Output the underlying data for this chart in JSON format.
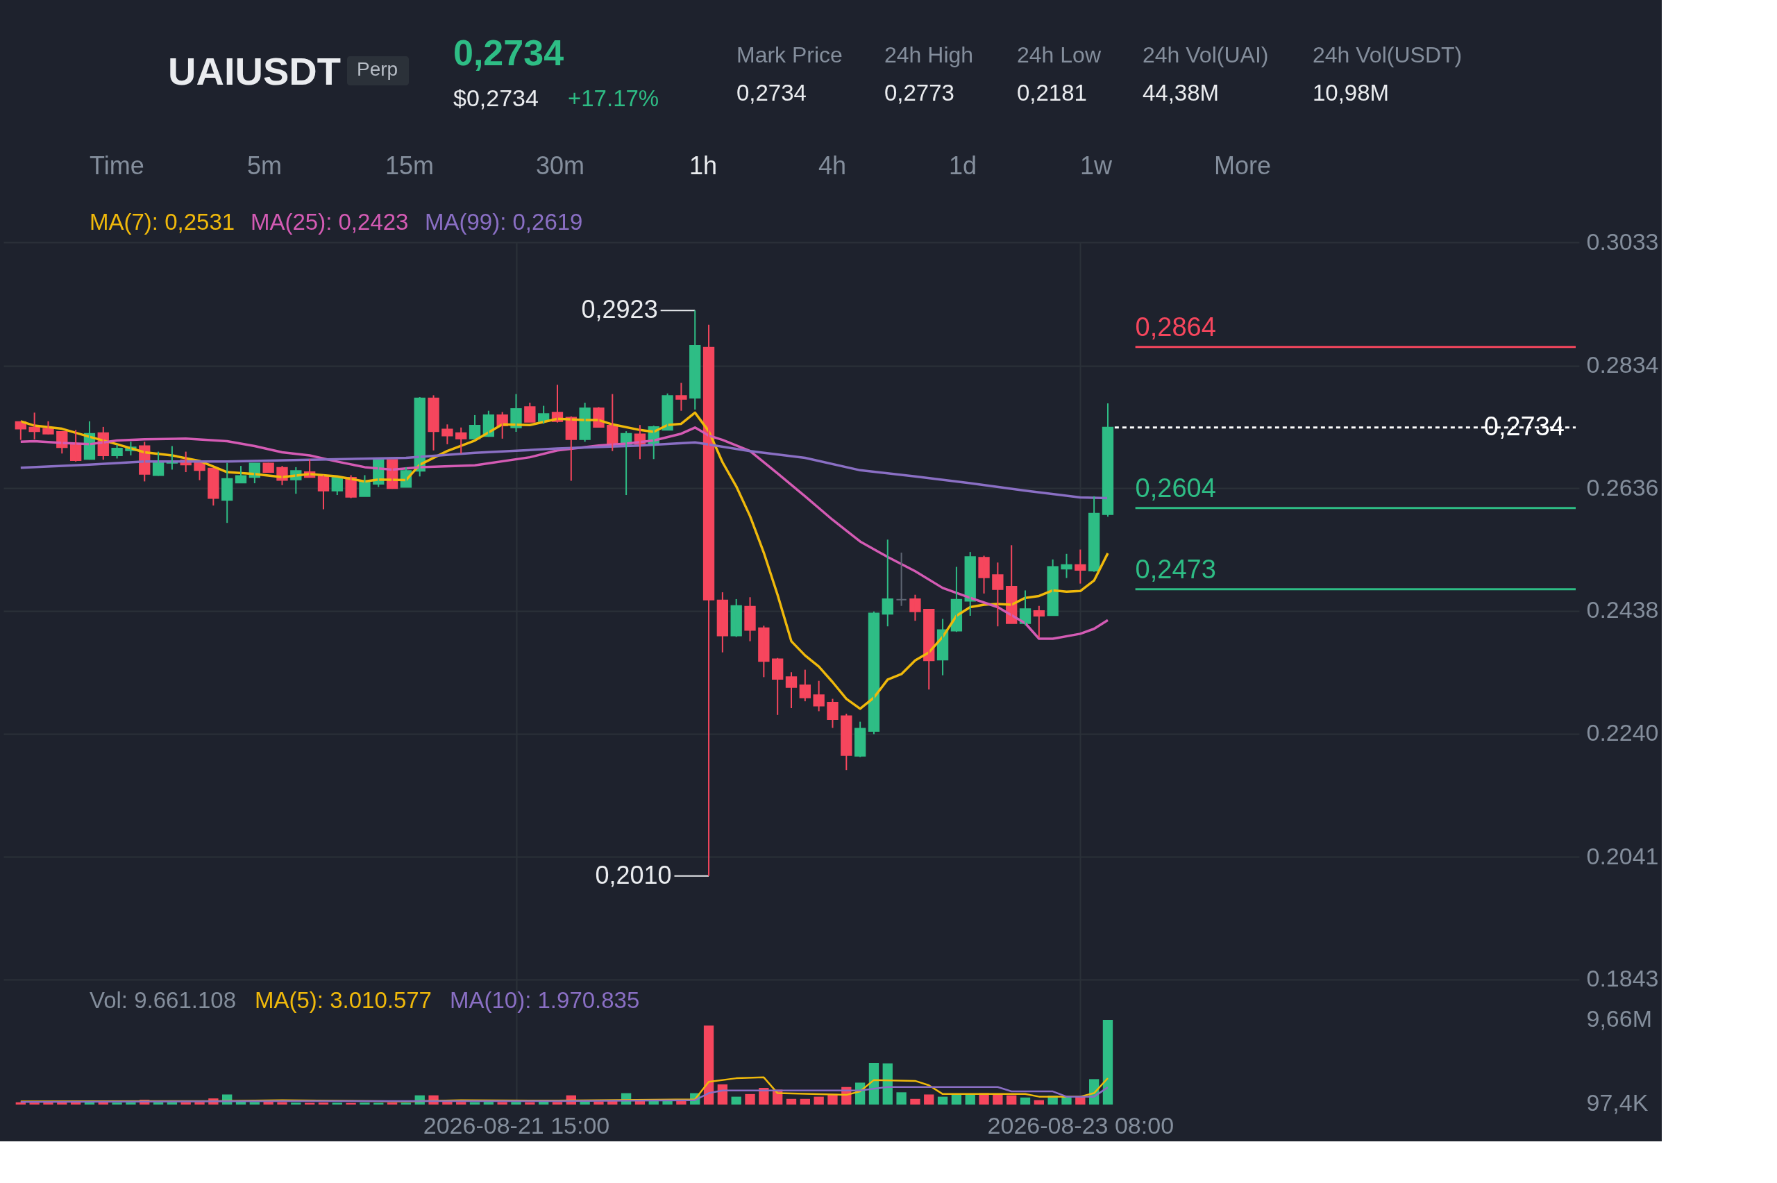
{
  "chart_data": {
    "type": "candlestick",
    "title": "UAIUSDT",
    "subtitle": "Perp",
    "annotations": [
      "0,2734",
      "$0,2734",
      "+17.17%",
      "Mark Price",
      "0,2734",
      "24h High",
      "0,2773",
      "24h Low",
      "0,2181",
      "24h Vol(UAI)",
      "44,38M",
      "24h Vol(USDT)",
      "10,98M",
      "Time",
      "5m",
      "15m",
      "30m",
      "1h",
      "4h",
      "1d",
      "1w",
      "More",
      "Vol: 9.661.108",
      "MA(5): 3.010.577",
      "MA(10): 1.970.835",
      {
        "text": "0,2923",
        "x": "2026-08-22T04:00",
        "y": 0.2923
      },
      {
        "text": "0,2010",
        "x": "2026-08-22T05:00",
        "y": 0.201
      }
    ],
    "x": [
      "2026-08-20T03:00",
      "2026-08-20T04:00",
      "2026-08-20T05:00",
      "2026-08-20T06:00",
      "2026-08-20T07:00",
      "2026-08-20T08:00",
      "2026-08-20T09:00",
      "2026-08-20T10:00",
      "2026-08-20T11:00",
      "2026-08-20T12:00",
      "2026-08-20T13:00",
      "2026-08-20T14:00",
      "2026-08-20T15:00",
      "2026-08-20T16:00",
      "2026-08-20T17:00",
      "2026-08-20T18:00",
      "2026-08-20T19:00",
      "2026-08-20T20:00",
      "2026-08-20T21:00",
      "2026-08-20T22:00",
      "2026-08-20T23:00",
      "2026-08-21T00:00",
      "2026-08-21T01:00",
      "2026-08-21T02:00",
      "2026-08-21T03:00",
      "2026-08-21T04:00",
      "2026-08-21T05:00",
      "2026-08-21T06:00",
      "2026-08-21T07:00",
      "2026-08-21T08:00",
      "2026-08-21T09:00",
      "2026-08-21T10:00",
      "2026-08-21T11:00",
      "2026-08-21T12:00",
      "2026-08-21T13:00",
      "2026-08-21T14:00",
      "2026-08-21T15:00",
      "2026-08-21T16:00",
      "2026-08-21T17:00",
      "2026-08-21T18:00",
      "2026-08-21T19:00",
      "2026-08-21T20:00",
      "2026-08-21T21:00",
      "2026-08-21T22:00",
      "2026-08-21T23:00",
      "2026-08-22T00:00",
      "2026-08-22T01:00",
      "2026-08-22T02:00",
      "2026-08-22T03:00",
      "2026-08-22T04:00",
      "2026-08-22T05:00",
      "2026-08-22T06:00",
      "2026-08-22T07:00",
      "2026-08-22T08:00",
      "2026-08-22T09:00",
      "2026-08-22T10:00",
      "2026-08-22T11:00",
      "2026-08-22T12:00",
      "2026-08-22T13:00",
      "2026-08-22T14:00",
      "2026-08-22T15:00",
      "2026-08-22T16:00",
      "2026-08-22T17:00",
      "2026-08-22T18:00",
      "2026-08-22T19:00",
      "2026-08-22T20:00",
      "2026-08-22T21:00",
      "2026-08-22T22:00",
      "2026-08-22T23:00",
      "2026-08-23T00:00",
      "2026-08-23T01:00",
      "2026-08-23T02:00",
      "2026-08-23T03:00",
      "2026-08-23T04:00",
      "2026-08-23T05:00",
      "2026-08-23T06:00",
      "2026-08-23T07:00",
      "2026-08-23T08:00",
      "2026-08-23T09:00",
      "2026-08-23T10:00"
    ],
    "ohlc": [
      [
        0.2743,
        0.2744,
        0.2714,
        0.2732
      ],
      [
        0.2734,
        0.2758,
        0.2715,
        0.2728
      ],
      [
        0.2732,
        0.2744,
        0.2723,
        0.2724
      ],
      [
        0.2727,
        0.2727,
        0.2692,
        0.2702
      ],
      [
        0.2706,
        0.273,
        0.2679,
        0.2681
      ],
      [
        0.2683,
        0.2744,
        0.2682,
        0.2724
      ],
      [
        0.2725,
        0.2735,
        0.2682,
        0.2689
      ],
      [
        0.2689,
        0.2706,
        0.2684,
        0.27
      ],
      [
        0.2697,
        0.2711,
        0.2689,
        0.2702
      ],
      [
        0.2704,
        0.2711,
        0.2647,
        0.2659
      ],
      [
        0.2657,
        0.2695,
        0.2656,
        0.2677
      ],
      [
        0.2677,
        0.2704,
        0.2666,
        0.268
      ],
      [
        0.2681,
        0.2695,
        0.2662,
        0.2674
      ],
      [
        0.2677,
        0.2677,
        0.2649,
        0.2665
      ],
      [
        0.2668,
        0.2668,
        0.2608,
        0.262
      ],
      [
        0.2617,
        0.2677,
        0.258,
        0.2651
      ],
      [
        0.2645,
        0.2672,
        0.2645,
        0.2656
      ],
      [
        0.2654,
        0.2676,
        0.2644,
        0.2676
      ],
      [
        0.2676,
        0.2677,
        0.2662,
        0.2662
      ],
      [
        0.2669,
        0.2672,
        0.2641,
        0.2649
      ],
      [
        0.265,
        0.267,
        0.2627,
        0.2664
      ],
      [
        0.2662,
        0.2683,
        0.2653,
        0.2654
      ],
      [
        0.2655,
        0.2657,
        0.2602,
        0.2632
      ],
      [
        0.2632,
        0.2653,
        0.2625,
        0.2653
      ],
      [
        0.2653,
        0.2657,
        0.262,
        0.2622
      ],
      [
        0.2623,
        0.2657,
        0.2623,
        0.2647
      ],
      [
        0.2643,
        0.2682,
        0.2638,
        0.2682
      ],
      [
        0.2682,
        0.2682,
        0.2635,
        0.2636
      ],
      [
        0.2638,
        0.267,
        0.2638,
        0.2664
      ],
      [
        0.2664,
        0.2783,
        0.2655,
        0.2781
      ],
      [
        0.2781,
        0.2786,
        0.2697,
        0.2728
      ],
      [
        0.2731,
        0.2739,
        0.2707,
        0.2721
      ],
      [
        0.2725,
        0.2734,
        0.2692,
        0.2716
      ],
      [
        0.2716,
        0.2754,
        0.2716,
        0.2737
      ],
      [
        0.272,
        0.2761,
        0.2719,
        0.2754
      ],
      [
        0.2754,
        0.2759,
        0.2716,
        0.2737
      ],
      [
        0.2734,
        0.2788,
        0.2727,
        0.2764
      ],
      [
        0.2767,
        0.2774,
        0.2743,
        0.2743
      ],
      [
        0.2744,
        0.2769,
        0.274,
        0.2756
      ],
      [
        0.2758,
        0.2803,
        0.2742,
        0.2744
      ],
      [
        0.275,
        0.2752,
        0.2648,
        0.2715
      ],
      [
        0.2715,
        0.2774,
        0.2711,
        0.2765
      ],
      [
        0.2765,
        0.2767,
        0.2735,
        0.2735
      ],
      [
        0.2737,
        0.2788,
        0.2696,
        0.2707
      ],
      [
        0.2707,
        0.2728,
        0.2625,
        0.2724
      ],
      [
        0.2723,
        0.2738,
        0.2683,
        0.2707
      ],
      [
        0.2707,
        0.2737,
        0.2683,
        0.2735
      ],
      [
        0.273,
        0.2789,
        0.273,
        0.2785
      ],
      [
        0.2785,
        0.2806,
        0.2761,
        0.278
      ],
      [
        0.2782,
        0.2923,
        0.2763,
        0.2866
      ],
      [
        0.2863,
        0.29,
        0.201,
        0.2456
      ],
      [
        0.2455,
        0.2468,
        0.2371,
        0.2398
      ],
      [
        0.2398,
        0.2457,
        0.2396,
        0.2446
      ],
      [
        0.2445,
        0.246,
        0.2389,
        0.2407
      ],
      [
        0.241,
        0.2414,
        0.2331,
        0.2357
      ],
      [
        0.236,
        0.2362,
        0.227,
        0.2328
      ],
      [
        0.2331,
        0.2339,
        0.2281,
        0.2315
      ],
      [
        0.2318,
        0.2343,
        0.2292,
        0.2298
      ],
      [
        0.2302,
        0.2325,
        0.2276,
        0.2285
      ],
      [
        0.229,
        0.2296,
        0.2249,
        0.2263
      ],
      [
        0.2268,
        0.2272,
        0.2181,
        0.2205
      ],
      [
        0.2204,
        0.2259,
        0.2202,
        0.2248
      ],
      [
        0.2244,
        0.2437,
        0.2239,
        0.2434
      ],
      [
        0.2433,
        0.2553,
        0.2413,
        0.2457
      ],
      [
        0.2456,
        0.2532,
        0.2446,
        0.2456
      ],
      [
        0.2457,
        0.2464,
        0.2422,
        0.2437
      ],
      [
        0.244,
        0.244,
        0.2311,
        0.2358
      ],
      [
        0.2359,
        0.2425,
        0.2334,
        0.2407
      ],
      [
        0.2406,
        0.2509,
        0.2404,
        0.2456
      ],
      [
        0.2454,
        0.2533,
        0.243,
        0.2525
      ],
      [
        0.2524,
        0.2527,
        0.2466,
        0.2492
      ],
      [
        0.2496,
        0.2516,
        0.2413,
        0.2473
      ],
      [
        0.2477,
        0.2544,
        0.2418,
        0.2418
      ],
      [
        0.2418,
        0.2471,
        0.2415,
        0.2441
      ],
      [
        0.2438,
        0.2446,
        0.2395,
        0.243
      ],
      [
        0.2431,
        0.2521,
        0.2431,
        0.2509
      ],
      [
        0.2506,
        0.253,
        0.2491,
        0.2512
      ],
      [
        0.2512,
        0.2537,
        0.2482,
        0.2504
      ],
      [
        0.2503,
        0.2623,
        0.2501,
        0.2595
      ],
      [
        0.2594,
        0.2773,
        0.259,
        0.2734
      ]
    ],
    "colors": [
      "#f6465d",
      "#f6465d",
      "#f6465d",
      "#f6465d",
      "#f6465d",
      "#2ebd85",
      "#f6465d",
      "#2ebd85",
      "#2ebd85",
      "#f6465d",
      "#2ebd85",
      "#2ebd85",
      "#f6465d",
      "#f6465d",
      "#f6465d",
      "#2ebd85",
      "#2ebd85",
      "#2ebd85",
      "#f6465d",
      "#f6465d",
      "#2ebd85",
      "#f6465d",
      "#f6465d",
      "#2ebd85",
      "#f6465d",
      "#2ebd85",
      "#2ebd85",
      "#f6465d",
      "#2ebd85",
      "#2ebd85",
      "#f6465d",
      "#f6465d",
      "#f6465d",
      "#2ebd85",
      "#2ebd85",
      "#f6465d",
      "#2ebd85",
      "#f6465d",
      "#2ebd85",
      "#f6465d",
      "#f6465d",
      "#2ebd85",
      "#f6465d",
      "#f6465d",
      "#2ebd85",
      "#f6465d",
      "#2ebd85",
      "#2ebd85",
      "#f6465d",
      "#2ebd85",
      "#f6465d",
      "#f6465d",
      "#2ebd85",
      "#f6465d",
      "#f6465d",
      "#f6465d",
      "#f6465d",
      "#f6465d",
      "#f6465d",
      "#f6465d",
      "#f6465d",
      "#2ebd85",
      "#2ebd85",
      "#2ebd85",
      "#5e6673",
      "#f6465d",
      "#f6465d",
      "#2ebd85",
      "#2ebd85",
      "#2ebd85",
      "#f6465d",
      "#f6465d",
      "#f6465d",
      "#2ebd85",
      "#f6465d",
      "#2ebd85",
      "#2ebd85",
      "#f6465d",
      "#2ebd85",
      "#2ebd85"
    ],
    "series": [
      {
        "type": "line",
        "name": "MA(7): 0,2531",
        "color": "#f0b90b",
        "x": [
          "2026-08-20T03:00",
          "2026-08-20T04:00",
          "2026-08-20T06:00",
          "2026-08-20T08:00",
          "2026-08-20T10:00",
          "2026-08-20T12:00",
          "2026-08-20T14:00",
          "2026-08-20T16:00",
          "2026-08-20T18:00",
          "2026-08-20T20:00",
          "2026-08-20T22:00",
          "2026-08-21T00:00",
          "2026-08-21T02:00",
          "2026-08-21T04:00",
          "2026-08-21T05:00",
          "2026-08-21T07:00",
          "2026-08-21T08:00",
          "2026-08-21T10:00",
          "2026-08-21T12:00",
          "2026-08-21T14:00",
          "2026-08-21T16:00",
          "2026-08-21T18:00",
          "2026-08-21T20:00",
          "2026-08-21T21:00",
          "2026-08-21T22:00",
          "2026-08-22T00:00",
          "2026-08-22T01:00",
          "2026-08-22T02:00",
          "2026-08-22T03:00",
          "2026-08-22T04:00",
          "2026-08-22T05:00",
          "2026-08-22T06:00",
          "2026-08-22T07:00",
          "2026-08-22T08:00",
          "2026-08-22T09:00",
          "2026-08-22T10:00",
          "2026-08-22T11:00",
          "2026-08-22T12:00",
          "2026-08-22T13:00",
          "2026-08-22T14:00",
          "2026-08-22T15:00",
          "2026-08-22T16:00",
          "2026-08-22T17:00",
          "2026-08-22T18:00",
          "2026-08-22T19:00",
          "2026-08-22T20:00",
          "2026-08-22T21:00",
          "2026-08-22T22:00",
          "2026-08-22T23:00",
          "2026-08-23T00:00",
          "2026-08-23T01:00",
          "2026-08-23T02:00",
          "2026-08-23T03:00",
          "2026-08-23T04:00",
          "2026-08-23T05:00",
          "2026-08-23T06:00",
          "2026-08-23T07:00",
          "2026-08-23T08:00",
          "2026-08-23T09:00",
          "2026-08-23T10:00"
        ],
        "values": [
          0.2744,
          0.2737,
          0.2732,
          0.2719,
          0.2707,
          0.2694,
          0.2689,
          0.268,
          0.2662,
          0.2659,
          0.2654,
          0.2659,
          0.2655,
          0.2647,
          0.265,
          0.2649,
          0.2674,
          0.2696,
          0.2713,
          0.2739,
          0.2738,
          0.2748,
          0.2746,
          0.2746,
          0.2739,
          0.273,
          0.2727,
          0.2738,
          0.274,
          0.2758,
          0.2728,
          0.2678,
          0.2639,
          0.2591,
          0.2532,
          0.2464,
          0.2389,
          0.2366,
          0.2348,
          0.2323,
          0.2296,
          0.228,
          0.2298,
          0.2327,
          0.2336,
          0.2358,
          0.2371,
          0.2396,
          0.243,
          0.2444,
          0.2448,
          0.2449,
          0.2448,
          0.2459,
          0.2462,
          0.2471,
          0.2469,
          0.247,
          0.2487,
          0.2531
        ]
      },
      {
        "type": "line",
        "name": "MA(25): 0,2423",
        "color": "#d45bb4",
        "x": [
          "2026-08-20T03:00",
          "2026-08-20T04:00",
          "2026-08-20T06:00",
          "2026-08-20T08:00",
          "2026-08-20T10:00",
          "2026-08-20T12:00",
          "2026-08-20T15:00",
          "2026-08-20T18:00",
          "2026-08-20T20:00",
          "2026-08-20T22:00",
          "2026-08-21T00:00",
          "2026-08-21T02:00",
          "2026-08-21T04:00",
          "2026-08-21T06:00",
          "2026-08-21T08:00",
          "2026-08-21T12:00",
          "2026-08-21T16:00",
          "2026-08-21T18:00",
          "2026-08-21T21:00",
          "2026-08-21T23:00",
          "2026-08-22T01:00",
          "2026-08-22T03:00",
          "2026-08-22T04:00",
          "2026-08-22T05:00",
          "2026-08-22T06:00",
          "2026-08-22T08:00",
          "2026-08-22T10:00",
          "2026-08-22T12:00",
          "2026-08-22T14:00",
          "2026-08-22T16:00",
          "2026-08-22T18:00",
          "2026-08-22T20:00",
          "2026-08-22T22:00",
          "2026-08-23T00:00",
          "2026-08-23T02:00",
          "2026-08-23T04:00",
          "2026-08-23T05:00",
          "2026-08-23T06:00",
          "2026-08-23T08:00",
          "2026-08-23T09:00",
          "2026-08-23T10:00"
        ],
        "values": [
          0.2711,
          0.2712,
          0.2709,
          0.2707,
          0.2713,
          0.2715,
          0.2716,
          0.2712,
          0.2704,
          0.2694,
          0.2689,
          0.2679,
          0.267,
          0.2666,
          0.267,
          0.2673,
          0.2686,
          0.2697,
          0.2705,
          0.2708,
          0.2713,
          0.2724,
          0.2734,
          0.2721,
          0.2714,
          0.2696,
          0.266,
          0.2623,
          0.2585,
          0.255,
          0.2525,
          0.2502,
          0.2475,
          0.2459,
          0.2444,
          0.2418,
          0.2393,
          0.2393,
          0.2401,
          0.2409,
          0.2423
        ]
      },
      {
        "type": "line",
        "name": "MA(99): 0,2619",
        "color": "#8a6fc4",
        "x": [
          "2026-08-20T03:00",
          "2026-08-20T08:00",
          "2026-08-20T12:00",
          "2026-08-20T18:00",
          "2026-08-21T00:00",
          "2026-08-21T07:00",
          "2026-08-21T12:00",
          "2026-08-21T18:00",
          "2026-08-22T00:00",
          "2026-08-22T04:00",
          "2026-08-22T08:00",
          "2026-08-22T12:00",
          "2026-08-22T16:00",
          "2026-08-22T20:00",
          "2026-08-23T00:00",
          "2026-08-23T04:00",
          "2026-08-23T08:00",
          "2026-08-23T10:00"
        ],
        "values": [
          0.2669,
          0.2674,
          0.2679,
          0.2679,
          0.2682,
          0.2685,
          0.2693,
          0.27,
          0.2705,
          0.271,
          0.2696,
          0.2685,
          0.2665,
          0.2655,
          0.2644,
          0.2632,
          0.2621,
          0.262
        ]
      },
      {
        "type": "bar",
        "axis": "y2",
        "x": [
          "2026-08-20T03:00",
          "2026-08-20T04:00",
          "2026-08-20T05:00",
          "2026-08-20T06:00",
          "2026-08-20T07:00",
          "2026-08-20T08:00",
          "2026-08-20T09:00",
          "2026-08-20T10:00",
          "2026-08-20T11:00",
          "2026-08-20T12:00",
          "2026-08-20T13:00",
          "2026-08-20T14:00",
          "2026-08-20T15:00",
          "2026-08-20T16:00",
          "2026-08-20T17:00",
          "2026-08-20T18:00",
          "2026-08-20T19:00",
          "2026-08-20T20:00",
          "2026-08-20T21:00",
          "2026-08-20T22:00",
          "2026-08-20T23:00",
          "2026-08-21T00:00",
          "2026-08-21T01:00",
          "2026-08-21T02:00",
          "2026-08-21T03:00",
          "2026-08-21T04:00",
          "2026-08-21T05:00",
          "2026-08-21T06:00",
          "2026-08-21T07:00",
          "2026-08-21T08:00",
          "2026-08-21T09:00",
          "2026-08-21T10:00",
          "2026-08-21T11:00",
          "2026-08-21T12:00",
          "2026-08-21T13:00",
          "2026-08-21T14:00",
          "2026-08-21T15:00",
          "2026-08-21T16:00",
          "2026-08-21T17:00",
          "2026-08-21T18:00",
          "2026-08-21T19:00",
          "2026-08-21T20:00",
          "2026-08-21T21:00",
          "2026-08-21T22:00",
          "2026-08-21T23:00",
          "2026-08-22T00:00",
          "2026-08-22T01:00",
          "2026-08-22T02:00",
          "2026-08-22T03:00",
          "2026-08-22T04:00",
          "2026-08-22T05:00",
          "2026-08-22T06:00",
          "2026-08-22T07:00",
          "2026-08-22T08:00",
          "2026-08-22T09:00",
          "2026-08-22T10:00",
          "2026-08-22T11:00",
          "2026-08-22T12:00",
          "2026-08-22T13:00",
          "2026-08-22T14:00",
          "2026-08-22T15:00",
          "2026-08-22T16:00",
          "2026-08-22T17:00",
          "2026-08-22T18:00",
          "2026-08-22T19:00",
          "2026-08-22T20:00",
          "2026-08-22T21:00",
          "2026-08-22T22:00",
          "2026-08-22T23:00",
          "2026-08-23T00:00",
          "2026-08-23T01:00",
          "2026-08-23T02:00",
          "2026-08-23T03:00",
          "2026-08-23T04:00",
          "2026-08-23T05:00",
          "2026-08-23T06:00",
          "2026-08-23T07:00",
          "2026-08-23T08:00",
          "2026-08-23T09:00",
          "2026-08-23T10:00"
        ],
        "values": [
          250000,
          230000,
          240000,
          260000,
          280000,
          230000,
          250000,
          220000,
          230000,
          550000,
          240000,
          260000,
          250000,
          280000,
          700000,
          1150000,
          350000,
          300000,
          320000,
          280000,
          220000,
          200000,
          230000,
          210000,
          190000,
          220000,
          200000,
          230000,
          210000,
          1050000,
          1050000,
          330000,
          300000,
          280000,
          310000,
          290000,
          300000,
          270000,
          320000,
          300000,
          1050000,
          380000,
          350000,
          400000,
          1300000,
          500000,
          480000,
          520000,
          500000,
          1300000,
          9000000,
          2300000,
          900000,
          1200000,
          1900000,
          1700000,
          650000,
          650000,
          900000,
          1200000,
          2000000,
          2500000,
          4750000,
          4700000,
          1400000,
          650000,
          1150000,
          900000,
          1200000,
          1200000,
          1300000,
          1200000,
          1050000,
          800000,
          500000,
          1000000,
          800000,
          800000,
          2900000,
          9661108
        ],
        "colors": [
          "#f6465d",
          "#f6465d",
          "#f6465d",
          "#f6465d",
          "#f6465d",
          "#2ebd85",
          "#f6465d",
          "#2ebd85",
          "#2ebd85",
          "#f6465d",
          "#2ebd85",
          "#2ebd85",
          "#f6465d",
          "#f6465d",
          "#f6465d",
          "#2ebd85",
          "#2ebd85",
          "#2ebd85",
          "#f6465d",
          "#f6465d",
          "#2ebd85",
          "#f6465d",
          "#f6465d",
          "#2ebd85",
          "#f6465d",
          "#2ebd85",
          "#2ebd85",
          "#f6465d",
          "#2ebd85",
          "#2ebd85",
          "#f6465d",
          "#f6465d",
          "#f6465d",
          "#2ebd85",
          "#2ebd85",
          "#f6465d",
          "#2ebd85",
          "#f6465d",
          "#2ebd85",
          "#f6465d",
          "#f6465d",
          "#2ebd85",
          "#f6465d",
          "#f6465d",
          "#2ebd85",
          "#f6465d",
          "#2ebd85",
          "#2ebd85",
          "#f6465d",
          "#2ebd85",
          "#f6465d",
          "#f6465d",
          "#2ebd85",
          "#f6465d",
          "#f6465d",
          "#f6465d",
          "#f6465d",
          "#f6465d",
          "#f6465d",
          "#f6465d",
          "#f6465d",
          "#2ebd85",
          "#2ebd85",
          "#2ebd85",
          "#2ebd85",
          "#f6465d",
          "#f6465d",
          "#2ebd85",
          "#2ebd85",
          "#2ebd85",
          "#f6465d",
          "#f6465d",
          "#f6465d",
          "#2ebd85",
          "#f6465d",
          "#2ebd85",
          "#2ebd85",
          "#f6465d",
          "#2ebd85",
          "#2ebd85"
        ]
      },
      {
        "type": "line",
        "axis": "y2",
        "color": "#f0b90b",
        "x": [
          "2026-08-20T03:00",
          "2026-08-20T17:00",
          "2026-08-20T22:00",
          "2026-08-21T07:00",
          "2026-08-21T11:00",
          "2026-08-21T18:00",
          "2026-08-22T04:00",
          "2026-08-22T05:00",
          "2026-08-22T07:00",
          "2026-08-22T09:00",
          "2026-08-22T10:00",
          "2026-08-22T15:00",
          "2026-08-22T16:00",
          "2026-08-22T17:00",
          "2026-08-22T20:00",
          "2026-08-22T21:00",
          "2026-08-22T22:00",
          "2026-08-23T04:00",
          "2026-08-23T05:00",
          "2026-08-23T08:00",
          "2026-08-23T09:00",
          "2026-08-23T10:00"
        ],
        "values": [
          350000,
          400000,
          500000,
          350000,
          500000,
          450000,
          600000,
          2600000,
          3000000,
          3100000,
          1300000,
          1100000,
          1500000,
          2800000,
          2700000,
          2200000,
          1200000,
          1200000,
          900000,
          900000,
          1300000,
          3010577
        ]
      },
      {
        "type": "line",
        "axis": "y2",
        "color": "#8a6fc4",
        "x": [
          "2026-08-20T03:00",
          "2026-08-20T22:00",
          "2026-08-21T18:00",
          "2026-08-22T04:00",
          "2026-08-22T05:00",
          "2026-08-22T06:00",
          "2026-08-22T16:00",
          "2026-08-22T18:00",
          "2026-08-23T02:00",
          "2026-08-23T03:00",
          "2026-08-23T06:00",
          "2026-08-23T07:00",
          "2026-08-23T09:00",
          "2026-08-23T10:00"
        ],
        "values": [
          300000,
          400000,
          400000,
          500000,
          1300000,
          1600000,
          1600000,
          2000000,
          2000000,
          1500000,
          1500000,
          900000,
          900000,
          1970835
        ]
      }
    ],
    "ref_lines": [
      {
        "axis": "y",
        "value": 0.2864,
        "label": "0,2864",
        "color": "#f6465d",
        "line_style": "solid"
      },
      {
        "axis": "y",
        "value": 0.2734,
        "label": "0,2734",
        "color": "#ffffff",
        "line_style": "dashed"
      },
      {
        "axis": "y",
        "value": 0.2604,
        "label": "0,2604",
        "color": "#2ebd85",
        "line_style": "solid"
      },
      {
        "axis": "y",
        "value": 0.2473,
        "label": "0,2473",
        "color": "#2ebd85",
        "line_style": "solid"
      }
    ],
    "xlim": [
      "2026-08-20T02:00",
      "2026-08-24T20:00"
    ],
    "xticks": [
      {
        "value": "2026-08-21T15:00",
        "label": "2026-08-21 15:00"
      },
      {
        "value": "2026-08-23T08:00",
        "label": "2026-08-23 08:00"
      }
    ],
    "ylim": [
      0.1641,
      0.3033
    ],
    "yticks": [
      0.3033,
      0.2834,
      0.2636,
      0.2438,
      {
        "value": 0.224,
        "label": "0.2240"
      },
      0.2041,
      0.1843
    ],
    "y2lim": [
      0,
      98350000
    ],
    "y2ticks": [
      {
        "value": 9661108,
        "label": "9,66M"
      },
      {
        "value": 97400,
        "label": "97,4K"
      }
    ],
    "grid": true
  }
}
